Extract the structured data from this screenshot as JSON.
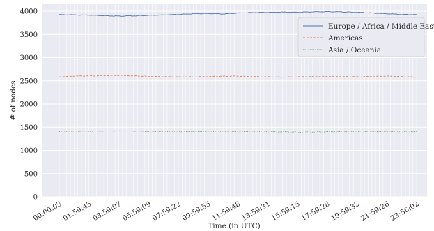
{
  "chart_data": {
    "type": "line",
    "title": "",
    "xlabel": "Time (in UTC)",
    "ylabel": "# of nodes",
    "ylim": [
      0,
      4000
    ],
    "yticks": [
      0,
      500,
      1000,
      1500,
      2000,
      2500,
      3000,
      3500,
      4000
    ],
    "x_tick_labels": [
      "00:00:03",
      "01:59:45",
      "03:59:07",
      "05:59:09",
      "07:59:22",
      "09:59:55",
      "11:59:48",
      "13:59:31",
      "15:59:15",
      "17:59:28",
      "19:59:32",
      "21:59:26",
      "23:56:02"
    ],
    "grid": true,
    "legend_position": "top-right",
    "series": [
      {
        "name": "Europe / Africa / Middle East",
        "color": "#4c72b0",
        "style": "solid",
        "values": [
          3925,
          3920,
          3915,
          3905,
          3895,
          3900,
          3910,
          3920,
          3930,
          3945,
          3950,
          3940,
          3960,
          3970,
          3975,
          3980,
          3975,
          3985,
          3990,
          3985,
          3975,
          3960,
          3945,
          3930,
          3925
        ]
      },
      {
        "name": "Americas",
        "color": "#dd8452",
        "style": "dashed",
        "values": [
          2585,
          2600,
          2605,
          2610,
          2615,
          2605,
          2595,
          2590,
          2585,
          2585,
          2590,
          2595,
          2600,
          2590,
          2585,
          2580,
          2585,
          2590,
          2595,
          2590,
          2585,
          2590,
          2600,
          2590,
          2580
        ]
      },
      {
        "name": "Asia / Oceania",
        "color": "#55a868",
        "style": "dotted",
        "values": [
          1410,
          1412,
          1415,
          1418,
          1420,
          1418,
          1412,
          1408,
          1405,
          1408,
          1410,
          1410,
          1412,
          1408,
          1405,
          1400,
          1395,
          1398,
          1402,
          1405,
          1408,
          1410,
          1408,
          1405,
          1405
        ]
      }
    ]
  }
}
